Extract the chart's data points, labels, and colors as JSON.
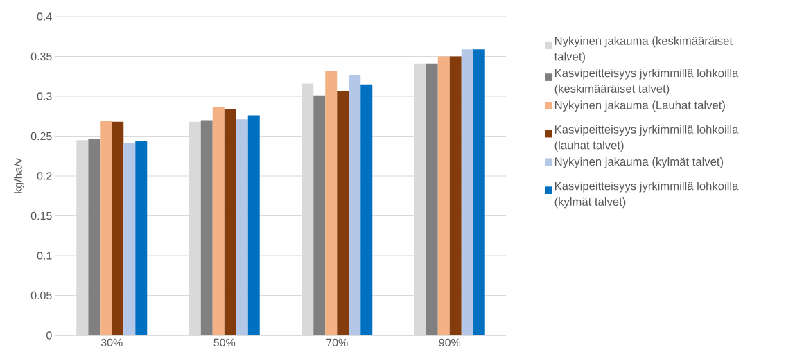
{
  "chart_data": {
    "type": "bar",
    "ylabel": "kg/ha/v",
    "categories": [
      "30%",
      "50%",
      "70%",
      "90%"
    ],
    "series": [
      {
        "name": "Nykyinen jakauma (keskimääräiset talvet)",
        "color": "#d9d9d9",
        "values": [
          0.245,
          0.268,
          0.316,
          0.341
        ]
      },
      {
        "name": "Kasvipeitteisyys jyrkimmillä lohkoilla (keskimääräiset talvet)",
        "color": "#808080",
        "values": [
          0.246,
          0.27,
          0.301,
          0.341
        ]
      },
      {
        "name": "Nykyinen jakauma (Lauhat talvet)",
        "color": "#f4b183",
        "values": [
          0.269,
          0.286,
          0.332,
          0.35
        ]
      },
      {
        "name": "Kasvipeitteisyys jyrkimmillä lohkoilla (lauhat talvet)",
        "color": "#843c0c",
        "values": [
          0.268,
          0.284,
          0.307,
          0.35
        ]
      },
      {
        "name": "Nykyinen jakauma (kylmät talvet)",
        "color": "#b4c7e7",
        "values": [
          0.241,
          0.271,
          0.327,
          0.359
        ]
      },
      {
        "name": "Kasvipeitteisyys jyrkimmillä lohkoilla (kylmät talvet)",
        "color": "#0070c0",
        "values": [
          0.244,
          0.276,
          0.315,
          0.359
        ]
      }
    ],
    "ylim": [
      0,
      0.4
    ],
    "yticks": [
      0,
      0.05,
      0.1,
      0.15,
      0.2,
      0.25,
      0.3,
      0.35,
      0.4
    ],
    "grid": "y",
    "legend": "right"
  }
}
